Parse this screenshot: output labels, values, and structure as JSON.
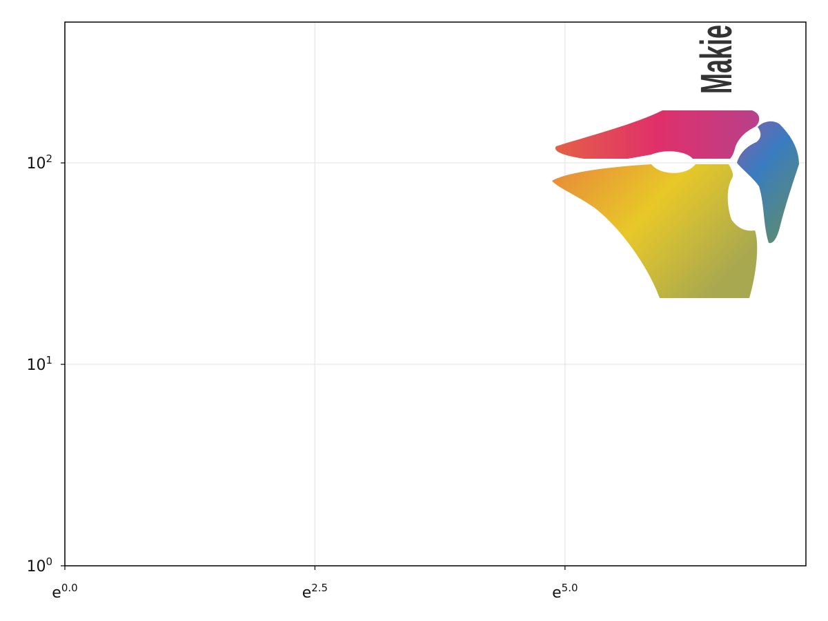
{
  "chart_data": {
    "type": "image",
    "title": "",
    "xlabel": "",
    "ylabel": "",
    "xscale": "natural-log",
    "yscale": "log10",
    "xlim": [
      1,
      1650
    ],
    "ylim": [
      1,
      500
    ],
    "grid": true,
    "x_ticks": [
      {
        "value": 1,
        "base": "e",
        "exp": "0.0"
      },
      {
        "value": 12.182,
        "base": "e",
        "exp": "2.5"
      },
      {
        "value": 148.41,
        "base": "e",
        "exp": "5.0"
      }
    ],
    "y_ticks": [
      {
        "value": 1,
        "base": "10",
        "exp": "0"
      },
      {
        "value": 10,
        "base": "10",
        "exp": "1"
      },
      {
        "value": 100,
        "base": "10",
        "exp": "2"
      }
    ],
    "image": {
      "description_word": "logo",
      "logo_text": "Makie",
      "x_extent": [
        108,
        1350
      ],
      "y_extent": [
        20,
        180
      ]
    },
    "colors": {
      "red": "#e0306a",
      "orange": "#e8883a",
      "yellow": "#e8c828",
      "blue": "#3a7cc0",
      "purple": "#8060a8",
      "grid": "#e6e6e6",
      "text": "#333333"
    }
  }
}
